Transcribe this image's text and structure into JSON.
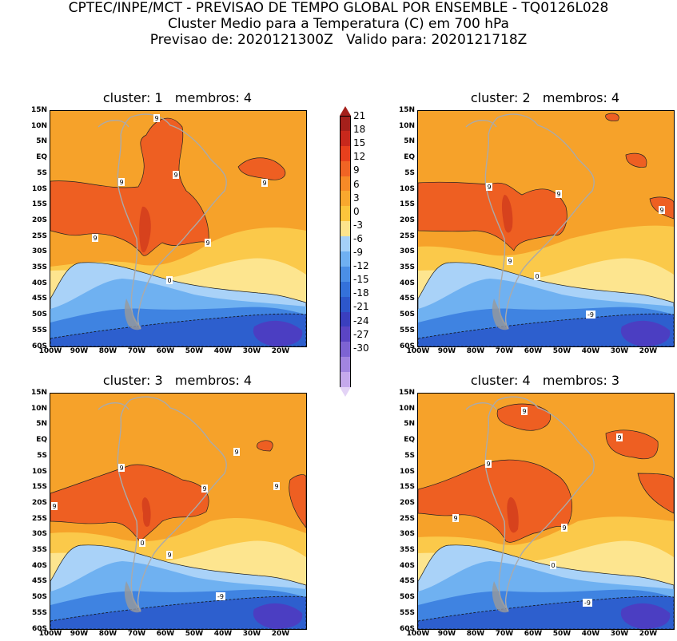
{
  "header": {
    "line1": "CPTEC/INPE/MCT - PREVISAO DE TEMPO GLOBAL POR ENSEMBLE - TQ0126L028",
    "line2": "Cluster Medio para a Temperatura (C) em 700 hPa",
    "line3": "Previsao de: 2020121300Z   Valido para: 2020121718Z"
  },
  "panels": [
    {
      "title": "cluster: 1   membros: 4",
      "labels": [
        "9",
        "9",
        "9",
        "9",
        "9",
        "9",
        "0"
      ]
    },
    {
      "title": "cluster: 2   membros: 4",
      "labels": [
        "9",
        "9",
        "9",
        "9",
        "0",
        "-9"
      ]
    },
    {
      "title": "cluster: 3   membros: 4",
      "labels": [
        "9",
        "9",
        "9",
        "9",
        "9",
        "0",
        "9",
        "-9"
      ]
    },
    {
      "title": "cluster: 4   membros: 3",
      "labels": [
        "9",
        "9",
        "9",
        "9",
        "9",
        "0",
        "-9"
      ]
    }
  ],
  "axes": {
    "lat_ticks": [
      "15N",
      "10N",
      "5N",
      "EQ",
      "5S",
      "10S",
      "15S",
      "20S",
      "25S",
      "30S",
      "35S",
      "40S",
      "45S",
      "50S",
      "55S",
      "60S"
    ],
    "lon_ticks": [
      "100W",
      "90W",
      "80W",
      "70W",
      "60W",
      "50W",
      "40W",
      "30W",
      "20W"
    ]
  },
  "colorbar": {
    "labels": [
      "21",
      "18",
      "15",
      "12",
      "9",
      "6",
      "3",
      "0",
      "-3",
      "-6",
      "-9",
      "-12",
      "-15",
      "-18",
      "-21",
      "-24",
      "-27",
      "-30"
    ],
    "colors": [
      "#a5201b",
      "#c8281c",
      "#e8401d",
      "#f06424",
      "#f68a27",
      "#f9a82e",
      "#fcc53c",
      "#fde48c",
      "#a4d0f8",
      "#6fb0f2",
      "#4b8fe6",
      "#3471da",
      "#2d57cb",
      "#3a3fbe",
      "#5b45c4",
      "#7d63d3",
      "#a285e0",
      "#c5a9ec",
      "#e3d3f6"
    ]
  },
  "palette": {
    "warm": "#f6a22a",
    "hot": "#ee5f22",
    "veryhot": "#d7421d",
    "pale": "#fde58f",
    "light": "#fbc94a",
    "cold1": "#a9d2f8",
    "cold2": "#6fb1f1",
    "cold3": "#3f83e1",
    "cold4": "#2d5fce",
    "cold5": "#4b3ec2",
    "land": "#aaaaaa"
  }
}
